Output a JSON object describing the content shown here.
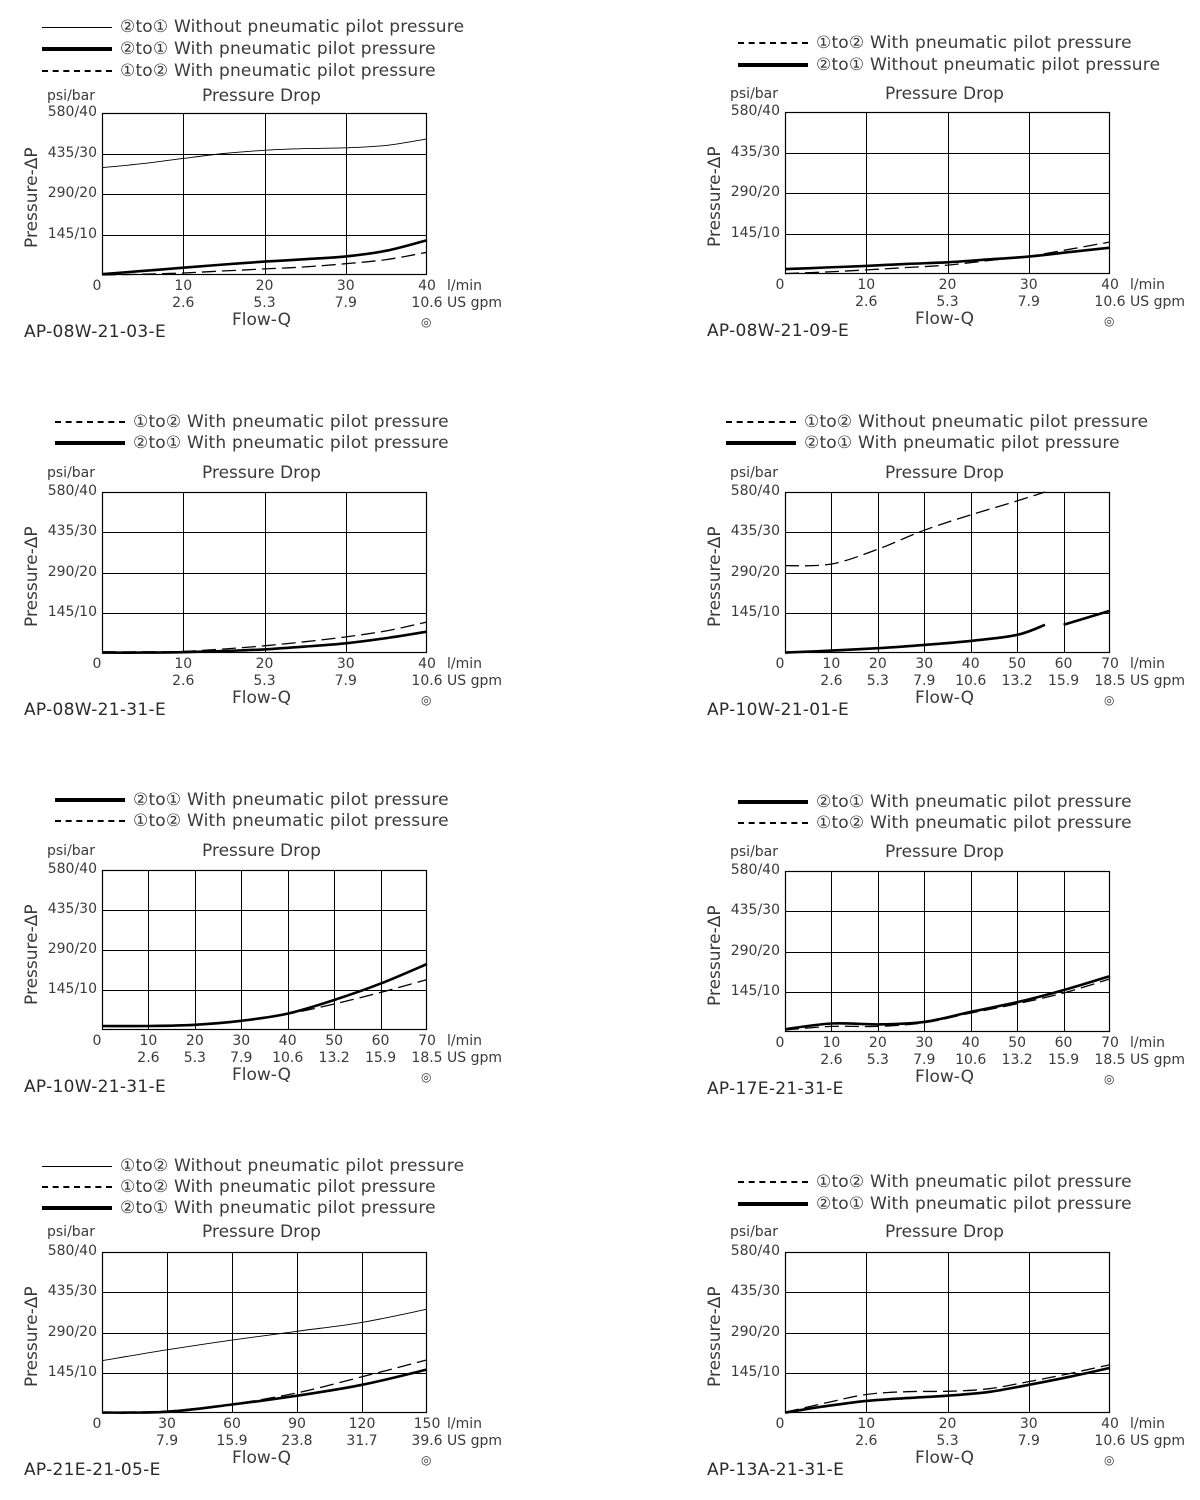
{
  "common": {
    "title": "Pressure Drop",
    "y_unit": "psi/bar",
    "y_label": "Pressure-ΔP",
    "x_label": "Flow-Q",
    "x_unit_lmin": "l/min",
    "x_unit_gpm": "US gpm",
    "y_ticks": [
      "580/40",
      "435/30",
      "290/20",
      "145/10"
    ],
    "target_icon": "◎"
  },
  "charts": [
    {
      "code": "AP-08W-21-03-E",
      "legend": [
        {
          "style": "thin",
          "text": "②to① Without pneumatic pilot pressure"
        },
        {
          "style": "thick",
          "text": "②to① With pneumatic pilot pressure"
        },
        {
          "style": "dashed",
          "text": "①to② With pneumatic pilot pressure"
        }
      ],
      "x_ticks": [
        "0",
        "10",
        "20",
        "30",
        "40"
      ],
      "x_ticks_gpm": [
        "",
        "2.6",
        "5.3",
        "7.9",
        "10.6"
      ]
    },
    {
      "code": "AP-08W-21-09-E",
      "legend": [
        {
          "style": "dashed",
          "text": "①to② With pneumatic pilot pressure"
        },
        {
          "style": "thick",
          "text": "②to① Without pneumatic pilot pressure"
        }
      ],
      "x_ticks": [
        "0",
        "10",
        "20",
        "30",
        "40"
      ],
      "x_ticks_gpm": [
        "",
        "2.6",
        "5.3",
        "7.9",
        "10.6"
      ]
    },
    {
      "code": "AP-08W-21-31-E",
      "legend": [
        {
          "style": "dashed",
          "text": "①to② With pneumatic pilot pressure"
        },
        {
          "style": "thick",
          "text": "②to① With pneumatic pilot pressure"
        }
      ],
      "x_ticks": [
        "0",
        "10",
        "20",
        "30",
        "40"
      ],
      "x_ticks_gpm": [
        "",
        "2.6",
        "5.3",
        "7.9",
        "10.6"
      ]
    },
    {
      "code": "AP-10W-21-01-E",
      "legend": [
        {
          "style": "dashed",
          "text": "①to② Without pneumatic pilot pressure"
        },
        {
          "style": "thick",
          "text": "②to① With pneumatic pilot pressure"
        }
      ],
      "x_ticks": [
        "0",
        "10",
        "20",
        "30",
        "40",
        "50",
        "60",
        "70"
      ],
      "x_ticks_gpm": [
        "",
        "2.6",
        "5.3",
        "7.9",
        "10.6",
        "13.2",
        "15.9",
        "18.5"
      ]
    },
    {
      "code": "AP-10W-21-31-E",
      "legend": [
        {
          "style": "thick",
          "text": "②to① With pneumatic pilot pressure"
        },
        {
          "style": "dashed",
          "text": "①to② With pneumatic pilot pressure"
        }
      ],
      "x_ticks": [
        "0",
        "10",
        "20",
        "30",
        "40",
        "50",
        "60",
        "70"
      ],
      "x_ticks_gpm": [
        "",
        "2.6",
        "5.3",
        "7.9",
        "10.6",
        "13.2",
        "15.9",
        "18.5"
      ]
    },
    {
      "code": "AP-17E-21-31-E",
      "legend": [
        {
          "style": "thick",
          "text": "②to① With pneumatic pilot pressure"
        },
        {
          "style": "dashed",
          "text": "①to② With pneumatic pilot pressure"
        }
      ],
      "x_ticks": [
        "0",
        "10",
        "20",
        "30",
        "40",
        "50",
        "60",
        "70"
      ],
      "x_ticks_gpm": [
        "",
        "2.6",
        "5.3",
        "7.9",
        "10.6",
        "13.2",
        "15.9",
        "18.5"
      ]
    },
    {
      "code": "AP-21E-21-05-E",
      "legend": [
        {
          "style": "thin",
          "text": "①to② Without pneumatic pilot pressure"
        },
        {
          "style": "dashed",
          "text": "①to② With pneumatic pilot pressure"
        },
        {
          "style": "thick",
          "text": "②to① With pneumatic pilot pressure"
        }
      ],
      "x_ticks": [
        "0",
        "30",
        "60",
        "90",
        "120",
        "150"
      ],
      "x_ticks_gpm": [
        "",
        "7.9",
        "15.9",
        "23.8",
        "31.7",
        "39.6"
      ]
    },
    {
      "code": "AP-13A-21-31-E",
      "legend": [
        {
          "style": "dashed",
          "text": "①to② With pneumatic pilot pressure"
        },
        {
          "style": "thick",
          "text": "②to① With pneumatic pilot pressure"
        }
      ],
      "x_ticks": [
        "0",
        "10",
        "20",
        "30",
        "40"
      ],
      "x_ticks_gpm": [
        "",
        "2.6",
        "5.3",
        "7.9",
        "10.6"
      ]
    }
  ],
  "chart_data": [
    {
      "type": "line",
      "title": "Pressure Drop",
      "code": "AP-08W-21-03-E",
      "xlabel": "Flow-Q (l/min)",
      "ylabel": "Pressure-ΔP (bar)",
      "xlim": [
        0,
        40
      ],
      "ylim": [
        0,
        40
      ],
      "grid": true,
      "legend_position": "top",
      "x": [
        0,
        5,
        10,
        15,
        20,
        25,
        30,
        35,
        40
      ],
      "series": [
        {
          "name": "②to① Without pneumatic pilot pressure",
          "style": "thin",
          "values": [
            26.5,
            27.5,
            28.8,
            30.0,
            30.8,
            31.2,
            31.4,
            32.0,
            33.6
          ]
        },
        {
          "name": "②to① With pneumatic pilot pressure",
          "style": "thick",
          "values": [
            0.2,
            1.0,
            1.8,
            2.6,
            3.3,
            3.9,
            4.6,
            6.0,
            8.6
          ]
        },
        {
          "name": "①to② With pneumatic pilot pressure",
          "style": "dashed",
          "values": [
            0,
            0.2,
            0.5,
            1.0,
            1.5,
            2.0,
            2.8,
            3.8,
            5.6
          ]
        }
      ]
    },
    {
      "type": "line",
      "title": "Pressure Drop",
      "code": "AP-08W-21-09-E",
      "xlabel": "Flow-Q (l/min)",
      "ylabel": "Pressure-ΔP (bar)",
      "xlim": [
        0,
        40
      ],
      "ylim": [
        0,
        40
      ],
      "grid": true,
      "legend_position": "top",
      "x": [
        0,
        5,
        10,
        15,
        20,
        25,
        30,
        35,
        40
      ],
      "series": [
        {
          "name": "①to② With pneumatic pilot pressure",
          "style": "dashed",
          "values": [
            0.1,
            0.5,
            1.0,
            1.6,
            2.2,
            3.3,
            4.4,
            6.1,
            7.9
          ]
        },
        {
          "name": "②to① Without pneumatic pilot pressure",
          "style": "thick",
          "values": [
            1.2,
            1.6,
            2.0,
            2.5,
            2.9,
            3.6,
            4.3,
            5.4,
            6.5
          ]
        }
      ]
    },
    {
      "type": "line",
      "title": "Pressure Drop",
      "code": "AP-08W-21-31-E",
      "xlabel": "Flow-Q (l/min)",
      "ylabel": "Pressure-ΔP (bar)",
      "xlim": [
        0,
        40
      ],
      "ylim": [
        0,
        40
      ],
      "grid": true,
      "legend_position": "top",
      "x": [
        0,
        5,
        10,
        15,
        20,
        25,
        30,
        35,
        40
      ],
      "series": [
        {
          "name": "①to② With pneumatic pilot pressure",
          "style": "dashed",
          "values": [
            0.3,
            0.3,
            0.4,
            1.0,
            1.8,
            2.8,
            4.0,
            5.5,
            7.7
          ]
        },
        {
          "name": "②to① With pneumatic pilot pressure",
          "style": "thick",
          "values": [
            0.1,
            0.1,
            0.2,
            0.5,
            0.9,
            1.6,
            2.4,
            3.7,
            5.3
          ]
        }
      ]
    },
    {
      "type": "line",
      "title": "Pressure Drop",
      "code": "AP-10W-21-01-E",
      "xlabel": "Flow-Q (l/min)",
      "ylabel": "Pressure-ΔP (bar)",
      "xlim": [
        0,
        70
      ],
      "ylim": [
        0,
        40
      ],
      "grid": true,
      "legend_position": "top",
      "x": [
        0,
        10,
        20,
        30,
        40,
        50,
        56
      ],
      "series": [
        {
          "name": "①to② Without pneumatic pilot pressure",
          "style": "dashed",
          "values": [
            21.7,
            22.1,
            25.8,
            30.5,
            34.3,
            37.8,
            40.0
          ]
        },
        {
          "name": "②to① With pneumatic pilot pressure",
          "style": "thick",
          "values": [
            0.1,
            0.6,
            1.2,
            2.0,
            3.0,
            4.5,
            7.0
          ]
        },
        {
          "name": "②to① With pneumatic pilot pressure (cont.)",
          "style": "thick",
          "x": [
            60,
            70
          ],
          "values": [
            7.0,
            10.5
          ]
        }
      ]
    },
    {
      "type": "line",
      "title": "Pressure Drop",
      "code": "AP-10W-21-31-E",
      "xlabel": "Flow-Q (l/min)",
      "ylabel": "Pressure-ΔP (bar)",
      "xlim": [
        0,
        70
      ],
      "ylim": [
        0,
        40
      ],
      "grid": true,
      "legend_position": "top",
      "x": [
        0,
        10,
        20,
        30,
        40,
        50,
        60,
        70
      ],
      "series": [
        {
          "name": "②to① With pneumatic pilot pressure",
          "style": "thick",
          "values": [
            1.0,
            1.0,
            1.3,
            2.3,
            4.1,
            7.5,
            11.6,
            16.5
          ]
        },
        {
          "name": "①to② With pneumatic pilot pressure",
          "style": "dashed",
          "values": [
            1.0,
            1.0,
            1.4,
            2.3,
            4.0,
            6.5,
            9.4,
            12.6
          ]
        }
      ]
    },
    {
      "type": "line",
      "title": "Pressure Drop",
      "code": "AP-17E-21-31-E",
      "xlabel": "Flow-Q (l/min)",
      "ylabel": "Pressure-ΔP (bar)",
      "xlim": [
        0,
        70
      ],
      "ylim": [
        0,
        40
      ],
      "grid": true,
      "legend_position": "top",
      "x": [
        0,
        10,
        20,
        30,
        40,
        50,
        60,
        70
      ],
      "series": [
        {
          "name": "②to① With pneumatic pilot pressure",
          "style": "thick",
          "values": [
            0.7,
            2.1,
            1.9,
            2.5,
            5.0,
            7.4,
            10.4,
            13.9
          ]
        },
        {
          "name": "①to② With pneumatic pilot pressure",
          "style": "dashed",
          "values": [
            0.5,
            1.4,
            1.4,
            2.3,
            4.7,
            7.0,
            9.7,
            13.2
          ]
        }
      ]
    },
    {
      "type": "line",
      "title": "Pressure Drop",
      "code": "AP-21E-21-05-E",
      "xlabel": "Flow-Q (l/min)",
      "ylabel": "Pressure-ΔP (bar)",
      "xlim": [
        0,
        150
      ],
      "ylim": [
        0,
        40
      ],
      "grid": true,
      "legend_position": "top",
      "x": [
        0,
        30,
        60,
        90,
        120,
        150
      ],
      "series": [
        {
          "name": "①to② Without pneumatic pilot pressure",
          "style": "thin",
          "values": [
            13.0,
            15.7,
            18.1,
            20.3,
            22.5,
            25.8
          ]
        },
        {
          "name": "①to② With pneumatic pilot pressure",
          "style": "dashed",
          "values": [
            0.2,
            0.5,
            2.2,
            5.0,
            9.0,
            13.2
          ]
        },
        {
          "name": "②to① With pneumatic pilot pressure",
          "style": "thick",
          "values": [
            0.1,
            0.3,
            2.1,
            4.3,
            7.0,
            10.8
          ]
        }
      ]
    },
    {
      "type": "line",
      "title": "Pressure Drop",
      "code": "AP-13A-21-31-E",
      "xlabel": "Flow-Q (l/min)",
      "ylabel": "Pressure-ΔP (bar)",
      "xlim": [
        0,
        40
      ],
      "ylim": [
        0,
        40
      ],
      "grid": true,
      "legend_position": "top",
      "x": [
        0,
        5,
        10,
        15,
        20,
        25,
        30,
        35,
        40
      ],
      "series": [
        {
          "name": "①to② With pneumatic pilot pressure",
          "style": "dashed",
          "values": [
            0.2,
            2.5,
            4.6,
            5.3,
            5.4,
            6.0,
            7.8,
            9.8,
            12.0
          ]
        },
        {
          "name": "②to① With pneumatic pilot pressure",
          "style": "thick",
          "values": [
            0.1,
            1.7,
            3.0,
            3.7,
            4.3,
            5.2,
            7.0,
            9.0,
            11.2
          ]
        }
      ]
    }
  ]
}
